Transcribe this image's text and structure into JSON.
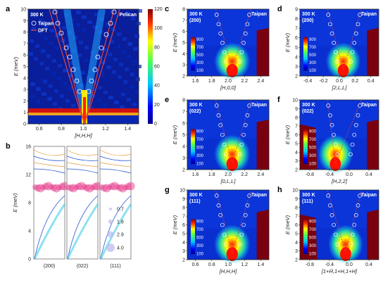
{
  "figure": {
    "panels": [
      {
        "id": "a",
        "label": "a",
        "temp": "300 K",
        "instrument": "Pelican",
        "xlabel": "[H,H,H]",
        "ylabel": "E (meV)",
        "xticks": [
          "0.6",
          "0.8",
          "1.0",
          "1.2",
          "1.4"
        ],
        "yticks": [
          "0",
          "1",
          "2",
          "3",
          "4",
          "5",
          "6",
          "7",
          "8",
          "9",
          "10"
        ],
        "legend": [
          "Taipan",
          "DFT"
        ],
        "cbar": [
          "0",
          "20",
          "40",
          "60",
          "80",
          "100",
          "120"
        ]
      },
      {
        "id": "b",
        "label": "b",
        "ylabel": "E (meV)",
        "yticks": [
          "0",
          "4",
          "8",
          "12",
          "16"
        ],
        "xcats": [
          "(200)",
          "(022)",
          "(111)"
        ],
        "sizes": [
          "0.7",
          "1.8",
          "2.9",
          "4.0"
        ]
      },
      {
        "id": "c",
        "label": "c",
        "temp": "300 K",
        "sub": "(200)",
        "instrument": "Taipan",
        "xlabel": "[H,0,0]",
        "ylabel": "E (meV)",
        "xticks": [
          "1.6",
          "1.8",
          "2.0",
          "2.2",
          "2.4"
        ],
        "yticks": [
          "2",
          "3",
          "4",
          "5",
          "6",
          "7",
          "8"
        ],
        "cbar": [
          "900",
          "700",
          "500",
          "300",
          "100"
        ]
      },
      {
        "id": "d",
        "label": "d",
        "temp": "300 K",
        "sub": "(200)",
        "instrument": "Taipan",
        "xlabel": "[2,L,L]",
        "ylabel": "E (meV)",
        "xticks": [
          "-0.4",
          "-0.2",
          "0.0",
          "0.2",
          "0.4"
        ],
        "yticks": [
          "2",
          "3",
          "4",
          "5",
          "6",
          "7",
          "8",
          "9"
        ],
        "cbar": [
          "900",
          "700",
          "500",
          "300",
          "100"
        ]
      },
      {
        "id": "e",
        "label": "e",
        "temp": "300 K",
        "sub": "(022)",
        "instrument": "Taipan",
        "xlabel": "[0,L,L]",
        "ylabel": "E (meV)",
        "xticks": [
          "1.6",
          "1.8",
          "2.0",
          "2.2",
          "2.4"
        ],
        "yticks": [
          "2",
          "3",
          "4",
          "5",
          "6",
          "7",
          "8"
        ],
        "cbar": [
          "900",
          "700",
          "500",
          "300",
          "100"
        ]
      },
      {
        "id": "f",
        "label": "f",
        "temp": "300 K",
        "sub": "(022)",
        "instrument": "Taipan",
        "xlabel": "[H,2,2]",
        "ylabel": "E (meV)",
        "xticks": [
          "-0.8",
          "-0.4",
          "0.0",
          "0.4"
        ],
        "yticks": [
          "2",
          "3",
          "4",
          "5",
          "6",
          "7",
          "8",
          "9",
          "10"
        ],
        "cbar": [
          "900",
          "700",
          "500",
          "300",
          "100"
        ]
      },
      {
        "id": "g",
        "label": "g",
        "temp": "300 K",
        "sub": "(111)",
        "instrument": "Taipan",
        "xlabel": "[H,H,H]",
        "ylabel": "E (meV)",
        "xticks": [
          "0.6",
          "0.8",
          "1.0",
          "1.2",
          "1.4"
        ],
        "yticks": [
          "2",
          "3",
          "4",
          "5",
          "6",
          "7",
          "8",
          "9",
          "10"
        ],
        "cbar": [
          "900",
          "700",
          "500",
          "300",
          "100"
        ]
      },
      {
        "id": "h",
        "label": "h",
        "temp": "300 K",
        "sub": "(111)",
        "instrument": "Taipan",
        "xlabel": "[1+H̄,1+H,1+H]",
        "ylabel": "E (meV)",
        "xticks": [
          "-0.8",
          "-0.4",
          "0.0",
          "0.4"
        ],
        "yticks": [
          "2",
          "3",
          "4",
          "5",
          "6",
          "7",
          "8",
          "9",
          "10"
        ],
        "cbar": [
          "900",
          "700",
          "500",
          "300",
          "100"
        ]
      }
    ],
    "colors": {
      "dftLine": "#e04545",
      "taipanRing": "#ffffff",
      "dispBlue": "#2050d0",
      "dispOrange": "#e59a3a",
      "dispPink": "#e8408f",
      "dispCyan": "#30c8e8"
    }
  }
}
